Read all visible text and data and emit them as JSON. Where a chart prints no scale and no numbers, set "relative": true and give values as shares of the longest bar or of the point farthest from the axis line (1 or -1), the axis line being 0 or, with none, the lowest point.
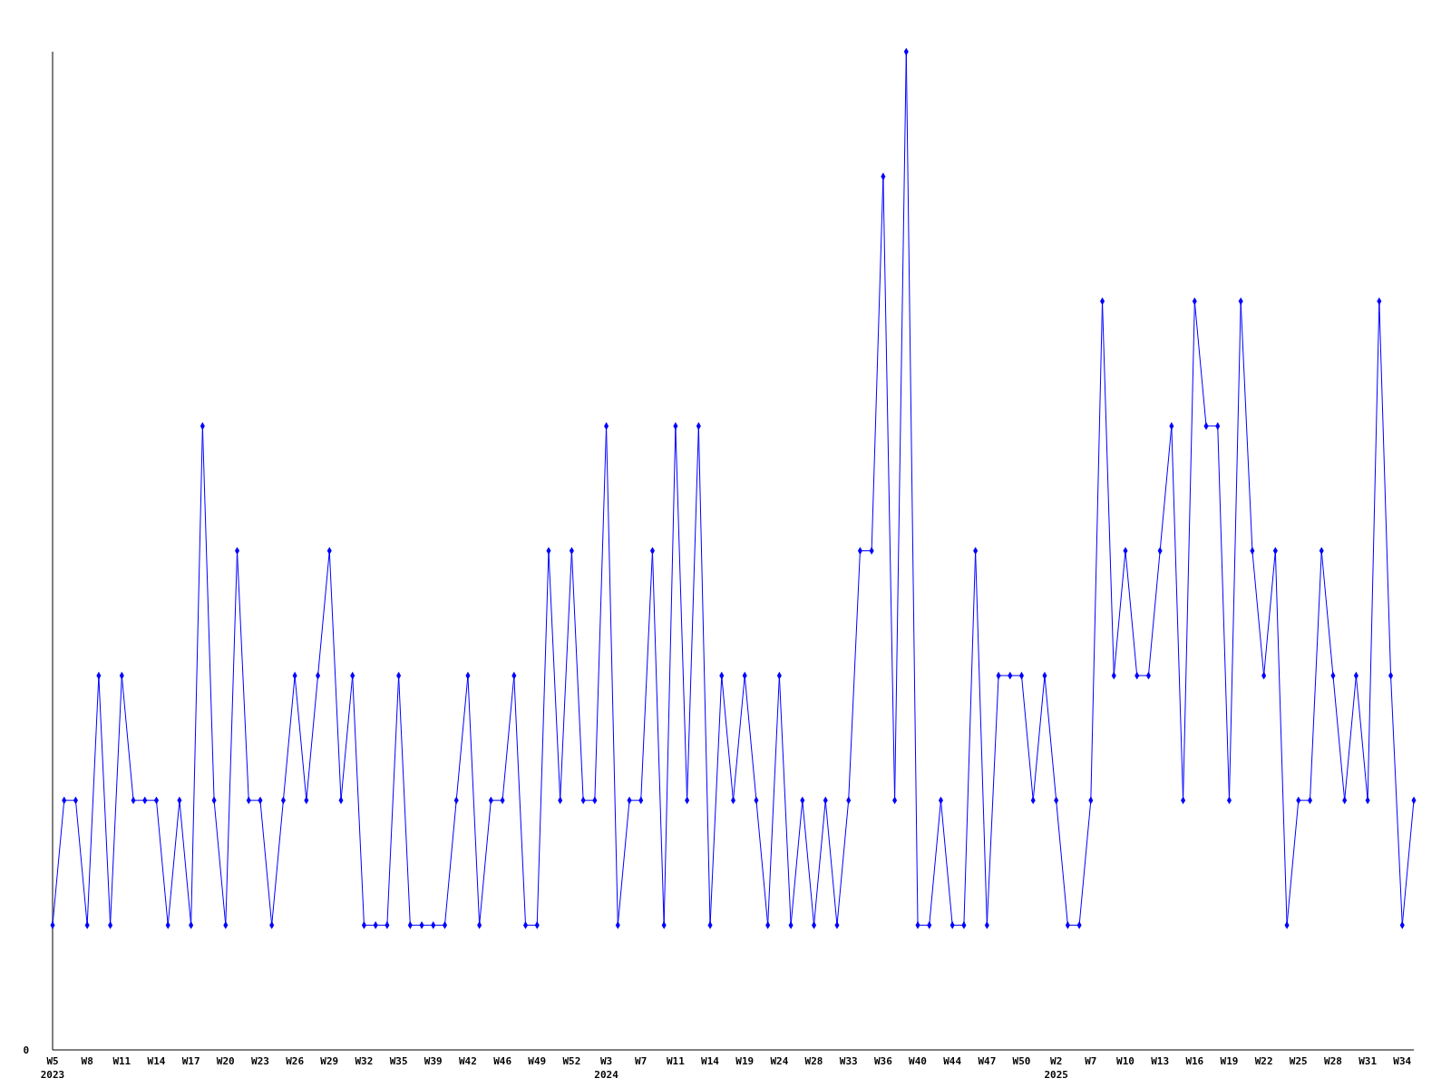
{
  "chart_data": {
    "type": "line",
    "relative": true,
    "annotations": [
      "0",
      "2023",
      "2024",
      "2025"
    ],
    "marker": "diamond",
    "categories": [
      "W5",
      null,
      null,
      "W8",
      null,
      null,
      "W11",
      null,
      null,
      "W14",
      null,
      null,
      "W17",
      null,
      null,
      "W20",
      null,
      null,
      "W23",
      null,
      null,
      "W26",
      null,
      null,
      "W29",
      null,
      null,
      "W32",
      null,
      null,
      "W35",
      null,
      null,
      "W39",
      null,
      null,
      "W42",
      null,
      null,
      "W46",
      null,
      null,
      "W49",
      null,
      null,
      "W52",
      null,
      null,
      "W3",
      null,
      null,
      "W7",
      null,
      null,
      "W11",
      null,
      null,
      "W14",
      null,
      null,
      "W19",
      null,
      null,
      "W24",
      null,
      null,
      "W28",
      null,
      null,
      "W33",
      null,
      null,
      "W36",
      null,
      null,
      "W40",
      null,
      null,
      "W44",
      null,
      null,
      "W47",
      null,
      null,
      "W50",
      null,
      null,
      "W2",
      null,
      null,
      "W7",
      null,
      null,
      "W10",
      null,
      null,
      "W13",
      null,
      null,
      "W16",
      null,
      null,
      "W19",
      null,
      null,
      "W22",
      null,
      null,
      "W25",
      null,
      null,
      "W28",
      null,
      null,
      "W31",
      null,
      null,
      "W34",
      null
    ],
    "series": [
      {
        "color": "#0000ff",
        "values": [
          0.125,
          0.25,
          0.25,
          0.125,
          0.375,
          0.125,
          0.375,
          0.25,
          0.25,
          0.25,
          0.125,
          0.25,
          0.125,
          0.625,
          0.25,
          0.125,
          0.5,
          0.25,
          0.25,
          0.125,
          0.25,
          0.375,
          0.25,
          0.375,
          0.5,
          0.25,
          0.375,
          0.125,
          0.125,
          0.125,
          0.375,
          0.125,
          0.125,
          0.125,
          0.125,
          0.25,
          0.375,
          0.125,
          0.25,
          0.25,
          0.375,
          0.125,
          0.125,
          0.5,
          0.25,
          0.5,
          0.25,
          0.25,
          0.625,
          0.125,
          0.25,
          0.25,
          0.5,
          0.125,
          0.625,
          0.25,
          0.625,
          0.125,
          0.375,
          0.25,
          0.375,
          0.25,
          0.125,
          0.375,
          0.125,
          0.25,
          0.125,
          0.25,
          0.125,
          0.25,
          0.5,
          0.5,
          0.875,
          0.25,
          1,
          0.125,
          0.125,
          0.25,
          0.125,
          0.125,
          0.5,
          0.125,
          0.375,
          0.375,
          0.375,
          0.25,
          0.375,
          0.25,
          0.125,
          0.125,
          0.25,
          0.75,
          0.375,
          0.5,
          0.375,
          0.375,
          0.5,
          0.625,
          0.25,
          0.75,
          0.625,
          0.625,
          0.25,
          0.75,
          0.5,
          0.375,
          0.5,
          0.125,
          0.25,
          0.25,
          0.5,
          0.375,
          0.25,
          0.375,
          0.25,
          0.75,
          0.375,
          0.125,
          0.25
        ]
      }
    ]
  }
}
